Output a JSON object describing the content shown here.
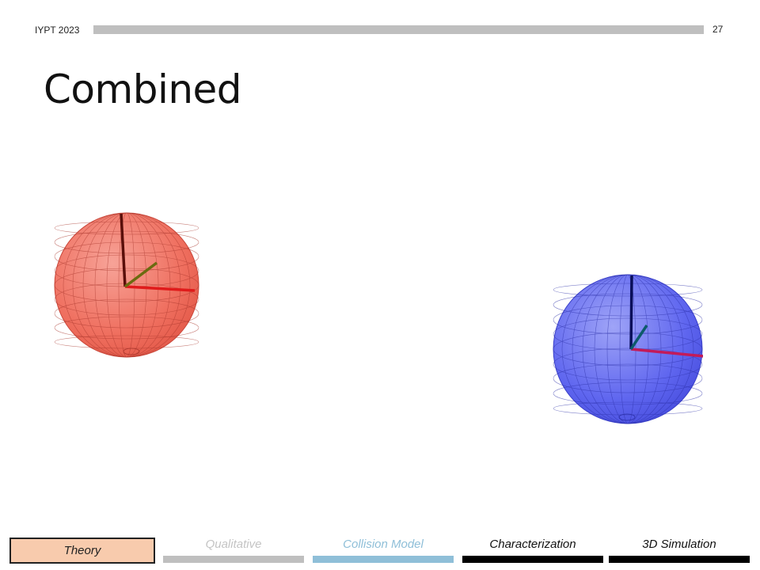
{
  "header": {
    "conference": "IYPT 2023",
    "page_number": "27"
  },
  "title": "Combined",
  "figures": {
    "left_sphere": {
      "color": "#f26b5b",
      "icon": "wireframe-sphere-red"
    },
    "right_sphere": {
      "color": "#5b63f2",
      "icon": "wireframe-sphere-blue"
    }
  },
  "nav": {
    "active": "Theory",
    "items": [
      {
        "label": "Theory",
        "bar_color": "#f8cbad",
        "text_color": "#222222"
      },
      {
        "label": "Qualitative",
        "bar_color": "#bfbfbf",
        "text_color": "#c4c4c4"
      },
      {
        "label": "Collision Model",
        "bar_color": "#8fbfd8",
        "text_color": "#8fbfd8"
      },
      {
        "label": "Characterization",
        "bar_color": "#000000",
        "text_color": "#111111"
      },
      {
        "label": "3D Simulation",
        "bar_color": "#000000",
        "text_color": "#111111"
      }
    ]
  }
}
